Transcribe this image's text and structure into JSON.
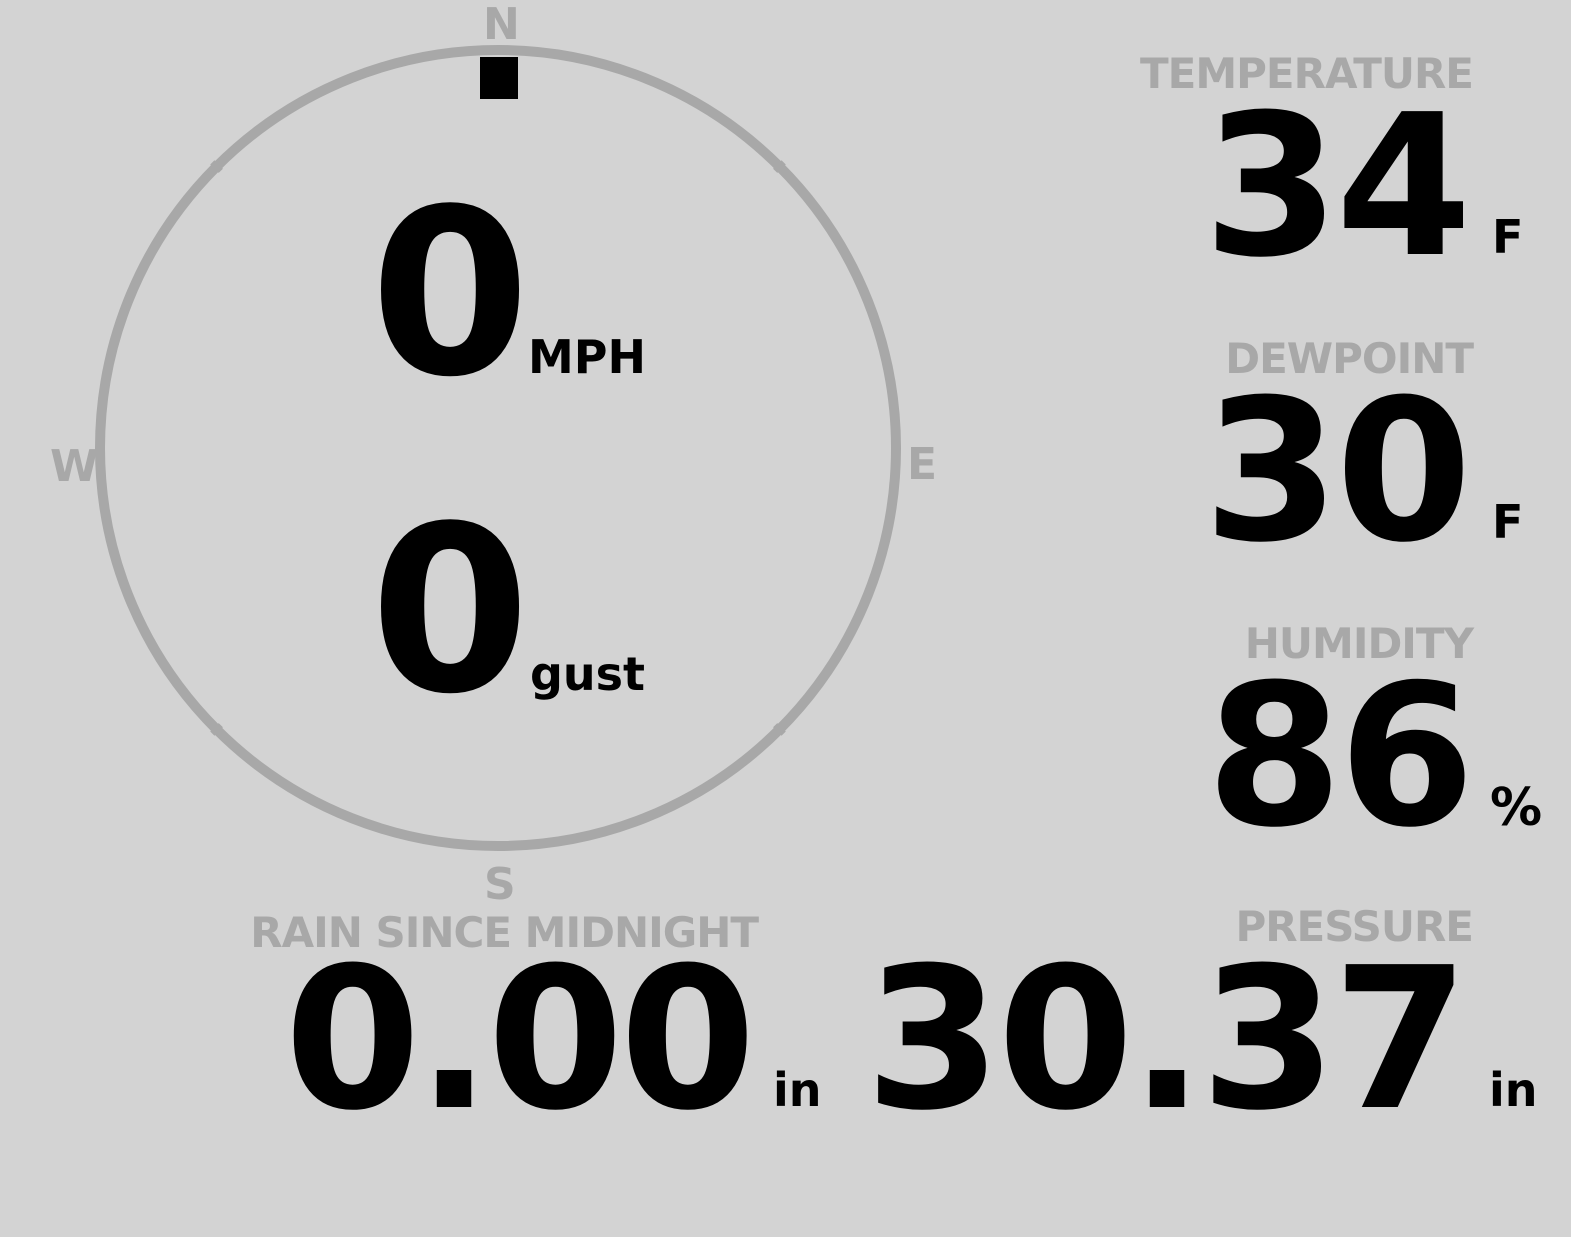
{
  "compass": {
    "north": "N",
    "east": "E",
    "south": "S",
    "west": "W",
    "wind_direction_deg": 0,
    "ring_color": "#a8a8a8",
    "marker_color": "#000000"
  },
  "wind": {
    "speed": "0",
    "speed_unit": "MPH",
    "gust": "0",
    "gust_unit": "gust"
  },
  "temperature": {
    "label": "TEMPERATURE",
    "value": "34",
    "unit": "F"
  },
  "dewpoint": {
    "label": "DEWPOINT",
    "value": "30",
    "unit": "F"
  },
  "humidity": {
    "label": "HUMIDITY",
    "value": "86",
    "unit": "%"
  },
  "pressure": {
    "label": "PRESSURE",
    "value": "30.37",
    "unit": "in"
  },
  "rain": {
    "label": "RAIN SINCE MIDNIGHT",
    "value": "0.00",
    "unit": "in"
  },
  "colors": {
    "background": "#d3d3d3",
    "label": "#a8a8a8",
    "value": "#000000"
  }
}
